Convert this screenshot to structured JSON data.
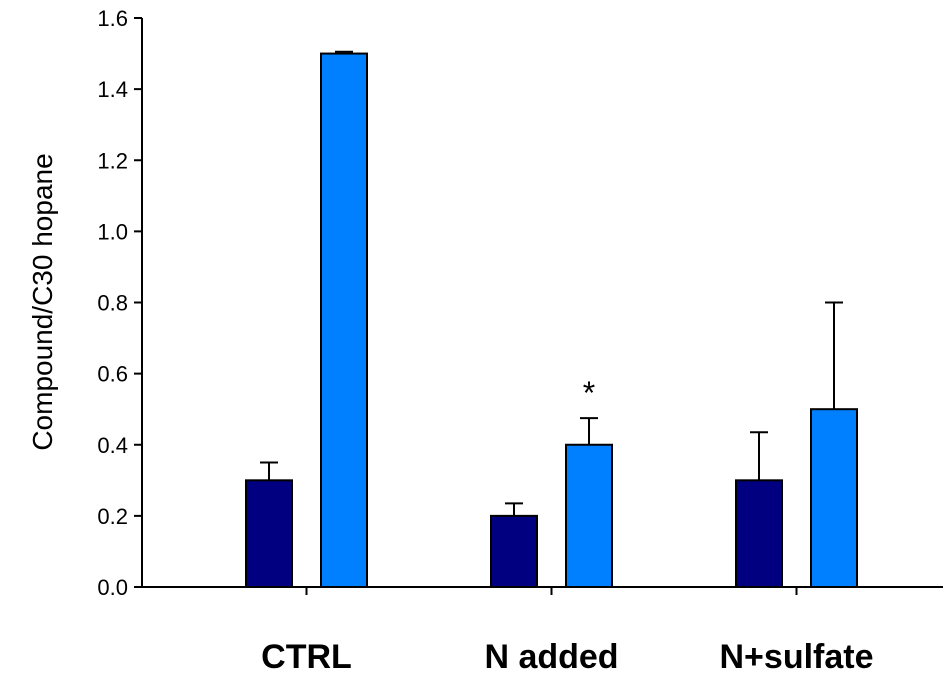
{
  "chart_data": {
    "type": "bar",
    "title": "",
    "xlabel": "",
    "ylabel": "Compound/C30 hopane",
    "ylim": [
      0,
      1.6
    ],
    "yticks": [
      "0.0",
      "0.2",
      "0.4",
      "0.6",
      "0.8",
      "1.0",
      "1.2",
      "1.4",
      "1.6"
    ],
    "categories": [
      "CTRL",
      "N added",
      "N+sulfate"
    ],
    "series": [
      {
        "color": "#000080",
        "values": [
          0.3,
          0.2,
          0.3
        ],
        "errors": [
          0.05,
          0.035,
          0.135
        ]
      },
      {
        "color": "#0080FF",
        "values": [
          1.5,
          0.4,
          0.5
        ],
        "errors": [
          0.005,
          0.075,
          0.3
        ]
      }
    ],
    "annotations": [
      {
        "text": "*",
        "category": "N added",
        "series": 1
      }
    ],
    "grid": false,
    "legend": "none"
  }
}
